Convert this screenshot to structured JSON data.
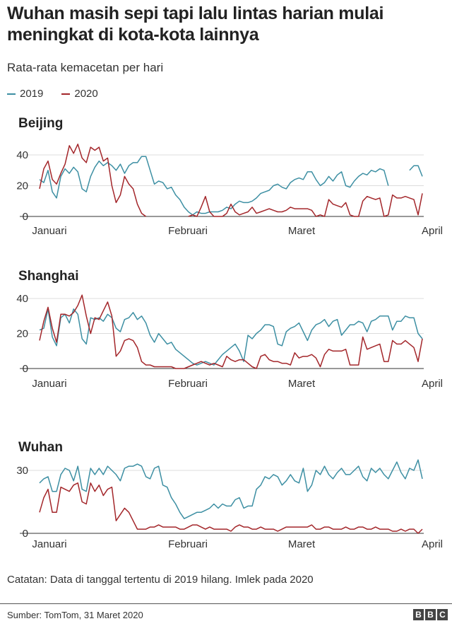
{
  "header": {
    "title": "Wuhan masih sepi tapi lalu lintas harian mulai meningkat di kota-kota lainnya",
    "subtitle": "Rata-rata kemacetan per hari"
  },
  "legend": [
    {
      "label": "2019",
      "color": "#3d8fa3"
    },
    {
      "label": "2020",
      "color": "#a3262a"
    }
  ],
  "footer": {
    "note": "Catatan: Data di tanggal tertentu di 2019 hilang. Imlek pada 2020",
    "source": "Sumber: TomTom, 31 Maret 2020",
    "logo_letters": [
      "B",
      "B",
      "C"
    ]
  },
  "chart_data": [
    {
      "type": "line",
      "title": "Beijing",
      "x_ticks": [
        "Januari",
        "Februari",
        "Maret",
        "April"
      ],
      "y_ticks": [
        0,
        20,
        40
      ],
      "ylim": [
        0,
        47
      ],
      "xlim": [
        1,
        91
      ],
      "series": [
        {
          "name": "2019",
          "color": "#3d8fa3",
          "values": [
            24,
            22,
            30,
            16,
            12,
            26,
            31,
            28,
            32,
            29,
            18,
            16,
            26,
            32,
            36,
            33,
            35,
            33,
            30,
            34,
            28,
            33,
            35,
            35,
            39,
            39,
            30,
            21,
            23,
            22,
            18,
            19,
            14,
            11,
            6,
            3,
            1,
            3,
            2,
            2,
            3,
            3,
            3,
            4,
            6,
            5,
            8,
            10,
            9,
            9,
            10,
            12,
            15,
            16,
            17,
            20,
            21,
            19,
            18,
            22,
            24,
            25,
            24,
            29,
            29,
            24,
            20,
            22,
            26,
            23,
            27,
            29,
            20,
            19,
            23,
            26,
            28,
            27,
            30,
            29,
            31,
            30,
            20,
            null,
            null,
            null,
            null,
            30,
            33,
            33,
            26
          ]
        },
        {
          "name": "2020",
          "color": "#a3262a",
          "values": [
            18,
            31,
            36,
            24,
            21,
            28,
            34,
            46,
            41,
            47,
            38,
            35,
            45,
            43,
            45,
            36,
            38,
            20,
            9,
            14,
            26,
            21,
            18,
            8,
            2,
            0,
            null,
            null,
            null,
            null,
            null,
            null,
            null,
            null,
            null,
            0,
            1,
            0,
            6,
            13,
            3,
            0,
            0,
            0,
            2,
            8,
            3,
            1,
            2,
            3,
            6,
            2,
            3,
            4,
            5,
            4,
            3,
            3,
            4,
            6,
            5,
            5,
            5,
            5,
            4,
            0,
            1,
            0,
            11,
            8,
            7,
            6,
            9,
            1,
            0,
            0,
            10,
            13,
            12,
            11,
            12,
            0,
            1,
            14,
            12,
            12,
            13,
            12,
            11,
            1,
            15
          ]
        }
      ]
    },
    {
      "type": "line",
      "title": "Shanghai",
      "x_ticks": [
        "Januari",
        "Februari",
        "Maret",
        "April"
      ],
      "y_ticks": [
        0,
        20,
        40
      ],
      "ylim": [
        0,
        43
      ],
      "xlim": [
        1,
        91
      ],
      "series": [
        {
          "name": "2019",
          "color": "#3d8fa3",
          "values": [
            22,
            23,
            34,
            18,
            13,
            29,
            31,
            26,
            34,
            31,
            17,
            14,
            29,
            28,
            29,
            27,
            31,
            29,
            23,
            21,
            28,
            29,
            32,
            28,
            30,
            26,
            19,
            15,
            20,
            17,
            14,
            15,
            11,
            9,
            7,
            5,
            3,
            2,
            3,
            4,
            3,
            2,
            5,
            8,
            10,
            12,
            14,
            10,
            4,
            19,
            17,
            20,
            22,
            25,
            25,
            24,
            14,
            13,
            21,
            23,
            24,
            26,
            21,
            16,
            22,
            25,
            26,
            28,
            24,
            27,
            28,
            19,
            22,
            25,
            25,
            27,
            26,
            21,
            27,
            28,
            30,
            30,
            30,
            22,
            27,
            27,
            30,
            29,
            29,
            20,
            17
          ]
        },
        {
          "name": "2020",
          "color": "#a3262a",
          "values": [
            16,
            27,
            35,
            23,
            15,
            31,
            31,
            30,
            32,
            36,
            42,
            30,
            20,
            29,
            28,
            33,
            38,
            30,
            7,
            10,
            16,
            17,
            16,
            12,
            4,
            2,
            2,
            1,
            1,
            1,
            1,
            1,
            0,
            0,
            0,
            1,
            2,
            3,
            4,
            3,
            2,
            3,
            2,
            1,
            7,
            5,
            4,
            5,
            5,
            3,
            1,
            0,
            7,
            8,
            5,
            4,
            4,
            3,
            3,
            2,
            9,
            6,
            7,
            7,
            8,
            6,
            1,
            8,
            11,
            10,
            10,
            10,
            11,
            2,
            2,
            2,
            18,
            11,
            12,
            13,
            14,
            4,
            4,
            16,
            14,
            14,
            16,
            14,
            12,
            4,
            17
          ]
        }
      ]
    },
    {
      "type": "line",
      "title": "Wuhan",
      "x_ticks": [
        "Januari",
        "Februari",
        "Maret",
        "April"
      ],
      "y_ticks": [
        0,
        30
      ],
      "ylim": [
        0,
        36
      ],
      "xlim": [
        1,
        91
      ],
      "series": [
        {
          "name": "2019",
          "color": "#3d8fa3",
          "values": [
            24,
            26,
            27,
            20,
            20,
            28,
            31,
            30,
            25,
            32,
            21,
            20,
            31,
            28,
            31,
            28,
            32,
            30,
            28,
            25,
            31,
            32,
            32,
            33,
            32,
            27,
            26,
            31,
            32,
            23,
            22,
            17,
            14,
            10,
            7,
            8,
            9,
            10,
            10,
            11,
            12,
            14,
            12,
            14,
            13,
            13,
            16,
            17,
            12,
            13,
            13,
            21,
            23,
            27,
            26,
            28,
            27,
            23,
            25,
            28,
            25,
            24,
            31,
            20,
            23,
            30,
            28,
            32,
            28,
            26,
            29,
            31,
            28,
            28,
            30,
            32,
            27,
            25,
            31,
            29,
            31,
            28,
            26,
            30,
            34,
            29,
            26,
            31,
            30,
            35,
            26
          ]
        },
        {
          "name": "2020",
          "color": "#a3262a",
          "values": [
            10,
            17,
            21,
            10,
            10,
            22,
            21,
            20,
            23,
            24,
            15,
            14,
            24,
            20,
            23,
            18,
            21,
            22,
            6,
            9,
            12,
            10,
            6,
            2,
            2,
            2,
            3,
            3,
            4,
            3,
            3,
            3,
            3,
            2,
            2,
            3,
            4,
            4,
            3,
            2,
            3,
            2,
            2,
            2,
            2,
            1,
            3,
            4,
            3,
            3,
            2,
            2,
            3,
            2,
            2,
            2,
            1,
            2,
            3,
            3,
            3,
            3,
            3,
            3,
            4,
            2,
            2,
            3,
            3,
            2,
            2,
            2,
            3,
            2,
            2,
            3,
            3,
            2,
            2,
            3,
            2,
            2,
            2,
            1,
            1,
            2,
            1,
            2,
            2,
            0,
            2
          ]
        }
      ]
    }
  ]
}
